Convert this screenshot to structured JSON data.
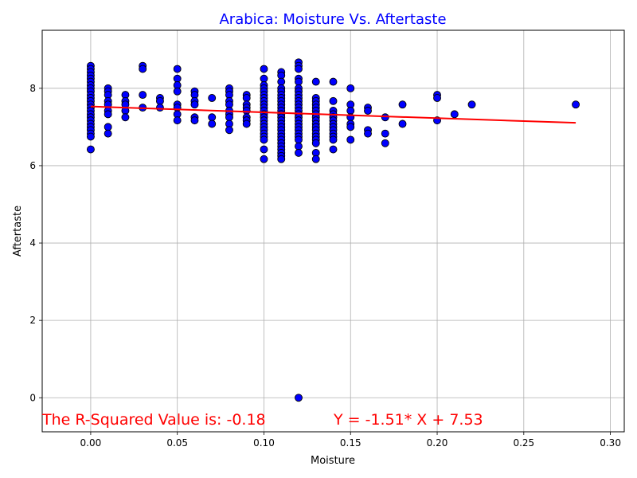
{
  "chart_data": {
    "type": "scatter",
    "title": "Arabica: Moisture Vs. Aftertaste",
    "xlabel": "Moisture",
    "ylabel": "Aftertaste",
    "xlim": [
      -0.028,
      0.308
    ],
    "ylim": [
      -0.88,
      9.5
    ],
    "xticks": [
      0.0,
      0.05,
      0.1,
      0.15,
      0.2,
      0.25,
      0.3
    ],
    "xtick_labels": [
      "0.00",
      "0.05",
      "0.10",
      "0.15",
      "0.20",
      "0.25",
      "0.30"
    ],
    "yticks": [
      0,
      2,
      4,
      6,
      8
    ],
    "ytick_labels": [
      "0",
      "2",
      "4",
      "6",
      "8"
    ],
    "grid": true,
    "colors": {
      "title": "#0000ff",
      "point_fill": "#0000ff",
      "point_edge": "#000000",
      "regression_line": "#ff0000",
      "annotation": "#ff0000",
      "grid": "#b0b0b0"
    },
    "points": [
      [
        0.0,
        8.58
      ],
      [
        0.0,
        8.5
      ],
      [
        0.0,
        8.42
      ],
      [
        0.0,
        8.33
      ],
      [
        0.0,
        8.25
      ],
      [
        0.0,
        8.17
      ],
      [
        0.0,
        8.08
      ],
      [
        0.0,
        8.0
      ],
      [
        0.0,
        7.92
      ],
      [
        0.0,
        7.83
      ],
      [
        0.0,
        7.75
      ],
      [
        0.0,
        7.67
      ],
      [
        0.0,
        7.58
      ],
      [
        0.0,
        7.5
      ],
      [
        0.0,
        7.42
      ],
      [
        0.0,
        7.33
      ],
      [
        0.0,
        7.25
      ],
      [
        0.0,
        7.17
      ],
      [
        0.0,
        7.08
      ],
      [
        0.0,
        7.0
      ],
      [
        0.0,
        6.92
      ],
      [
        0.0,
        6.83
      ],
      [
        0.0,
        6.75
      ],
      [
        0.0,
        6.42
      ],
      [
        0.01,
        8.0
      ],
      [
        0.01,
        7.92
      ],
      [
        0.01,
        7.83
      ],
      [
        0.01,
        7.67
      ],
      [
        0.01,
        7.58
      ],
      [
        0.01,
        7.42
      ],
      [
        0.01,
        7.33
      ],
      [
        0.01,
        7.0
      ],
      [
        0.01,
        6.83
      ],
      [
        0.02,
        7.83
      ],
      [
        0.02,
        7.67
      ],
      [
        0.02,
        7.58
      ],
      [
        0.02,
        7.42
      ],
      [
        0.02,
        7.25
      ],
      [
        0.03,
        8.58
      ],
      [
        0.03,
        8.5
      ],
      [
        0.03,
        7.83
      ],
      [
        0.03,
        7.5
      ],
      [
        0.04,
        7.75
      ],
      [
        0.04,
        7.67
      ],
      [
        0.04,
        7.5
      ],
      [
        0.05,
        8.5
      ],
      [
        0.05,
        8.25
      ],
      [
        0.05,
        8.08
      ],
      [
        0.05,
        7.92
      ],
      [
        0.05,
        7.58
      ],
      [
        0.05,
        7.5
      ],
      [
        0.05,
        7.33
      ],
      [
        0.05,
        7.17
      ],
      [
        0.06,
        7.92
      ],
      [
        0.06,
        7.83
      ],
      [
        0.06,
        7.67
      ],
      [
        0.06,
        7.58
      ],
      [
        0.06,
        7.25
      ],
      [
        0.06,
        7.17
      ],
      [
        0.07,
        7.75
      ],
      [
        0.07,
        7.25
      ],
      [
        0.07,
        7.08
      ],
      [
        0.08,
        8.0
      ],
      [
        0.08,
        7.92
      ],
      [
        0.08,
        7.83
      ],
      [
        0.08,
        7.67
      ],
      [
        0.08,
        7.58
      ],
      [
        0.08,
        7.42
      ],
      [
        0.08,
        7.33
      ],
      [
        0.08,
        7.25
      ],
      [
        0.08,
        7.08
      ],
      [
        0.08,
        6.92
      ],
      [
        0.09,
        7.83
      ],
      [
        0.09,
        7.75
      ],
      [
        0.09,
        7.58
      ],
      [
        0.09,
        7.5
      ],
      [
        0.09,
        7.42
      ],
      [
        0.09,
        7.25
      ],
      [
        0.09,
        7.17
      ],
      [
        0.09,
        7.08
      ],
      [
        0.1,
        8.5
      ],
      [
        0.1,
        8.25
      ],
      [
        0.1,
        8.08
      ],
      [
        0.1,
        8.0
      ],
      [
        0.1,
        7.92
      ],
      [
        0.1,
        7.83
      ],
      [
        0.1,
        7.75
      ],
      [
        0.1,
        7.67
      ],
      [
        0.1,
        7.58
      ],
      [
        0.1,
        7.5
      ],
      [
        0.1,
        7.42
      ],
      [
        0.1,
        7.33
      ],
      [
        0.1,
        7.25
      ],
      [
        0.1,
        7.17
      ],
      [
        0.1,
        7.08
      ],
      [
        0.1,
        7.0
      ],
      [
        0.1,
        6.92
      ],
      [
        0.1,
        6.83
      ],
      [
        0.1,
        6.75
      ],
      [
        0.1,
        6.67
      ],
      [
        0.1,
        6.42
      ],
      [
        0.1,
        6.17
      ],
      [
        0.11,
        8.42
      ],
      [
        0.11,
        8.33
      ],
      [
        0.11,
        8.17
      ],
      [
        0.11,
        8.0
      ],
      [
        0.11,
        7.92
      ],
      [
        0.11,
        7.83
      ],
      [
        0.11,
        7.75
      ],
      [
        0.11,
        7.67
      ],
      [
        0.11,
        7.58
      ],
      [
        0.11,
        7.5
      ],
      [
        0.11,
        7.42
      ],
      [
        0.11,
        7.33
      ],
      [
        0.11,
        7.25
      ],
      [
        0.11,
        7.17
      ],
      [
        0.11,
        7.08
      ],
      [
        0.11,
        7.0
      ],
      [
        0.11,
        6.92
      ],
      [
        0.11,
        6.83
      ],
      [
        0.11,
        6.75
      ],
      [
        0.11,
        6.67
      ],
      [
        0.11,
        6.58
      ],
      [
        0.11,
        6.5
      ],
      [
        0.11,
        6.42
      ],
      [
        0.11,
        6.33
      ],
      [
        0.11,
        6.25
      ],
      [
        0.11,
        6.17
      ],
      [
        0.12,
        8.67
      ],
      [
        0.12,
        8.58
      ],
      [
        0.12,
        8.5
      ],
      [
        0.12,
        8.25
      ],
      [
        0.12,
        8.17
      ],
      [
        0.12,
        8.0
      ],
      [
        0.12,
        7.92
      ],
      [
        0.12,
        7.83
      ],
      [
        0.12,
        7.75
      ],
      [
        0.12,
        7.67
      ],
      [
        0.12,
        7.58
      ],
      [
        0.12,
        7.5
      ],
      [
        0.12,
        7.42
      ],
      [
        0.12,
        7.33
      ],
      [
        0.12,
        7.25
      ],
      [
        0.12,
        7.17
      ],
      [
        0.12,
        7.08
      ],
      [
        0.12,
        7.0
      ],
      [
        0.12,
        6.92
      ],
      [
        0.12,
        6.83
      ],
      [
        0.12,
        6.75
      ],
      [
        0.12,
        6.67
      ],
      [
        0.12,
        6.5
      ],
      [
        0.12,
        6.33
      ],
      [
        0.12,
        0.0
      ],
      [
        0.13,
        8.17
      ],
      [
        0.13,
        7.75
      ],
      [
        0.13,
        7.67
      ],
      [
        0.13,
        7.58
      ],
      [
        0.13,
        7.5
      ],
      [
        0.13,
        7.42
      ],
      [
        0.13,
        7.33
      ],
      [
        0.13,
        7.25
      ],
      [
        0.13,
        7.17
      ],
      [
        0.13,
        7.08
      ],
      [
        0.13,
        7.0
      ],
      [
        0.13,
        6.92
      ],
      [
        0.13,
        6.83
      ],
      [
        0.13,
        6.75
      ],
      [
        0.13,
        6.67
      ],
      [
        0.13,
        6.58
      ],
      [
        0.13,
        6.33
      ],
      [
        0.13,
        6.17
      ],
      [
        0.14,
        8.17
      ],
      [
        0.14,
        7.67
      ],
      [
        0.14,
        7.42
      ],
      [
        0.14,
        7.33
      ],
      [
        0.14,
        7.25
      ],
      [
        0.14,
        7.17
      ],
      [
        0.14,
        7.08
      ],
      [
        0.14,
        7.0
      ],
      [
        0.14,
        6.92
      ],
      [
        0.14,
        6.83
      ],
      [
        0.14,
        6.75
      ],
      [
        0.14,
        6.67
      ],
      [
        0.14,
        6.42
      ],
      [
        0.15,
        8.0
      ],
      [
        0.15,
        7.58
      ],
      [
        0.15,
        7.42
      ],
      [
        0.15,
        7.25
      ],
      [
        0.15,
        7.08
      ],
      [
        0.15,
        7.0
      ],
      [
        0.15,
        6.67
      ],
      [
        0.16,
        7.5
      ],
      [
        0.16,
        7.42
      ],
      [
        0.16,
        6.92
      ],
      [
        0.16,
        6.83
      ],
      [
        0.17,
        7.25
      ],
      [
        0.17,
        6.83
      ],
      [
        0.17,
        6.58
      ],
      [
        0.18,
        7.58
      ],
      [
        0.18,
        7.08
      ],
      [
        0.2,
        7.83
      ],
      [
        0.2,
        7.75
      ],
      [
        0.2,
        7.17
      ],
      [
        0.21,
        7.33
      ],
      [
        0.22,
        7.58
      ],
      [
        0.28,
        7.58
      ]
    ],
    "regression": {
      "x_start": 0.0,
      "x_end": 0.28,
      "slope": -1.51,
      "intercept": 7.53
    },
    "annotations": {
      "r_squared": "The R-Squared Value is: -0.18",
      "equation": "Y = -1.51* X + 7.53"
    }
  }
}
